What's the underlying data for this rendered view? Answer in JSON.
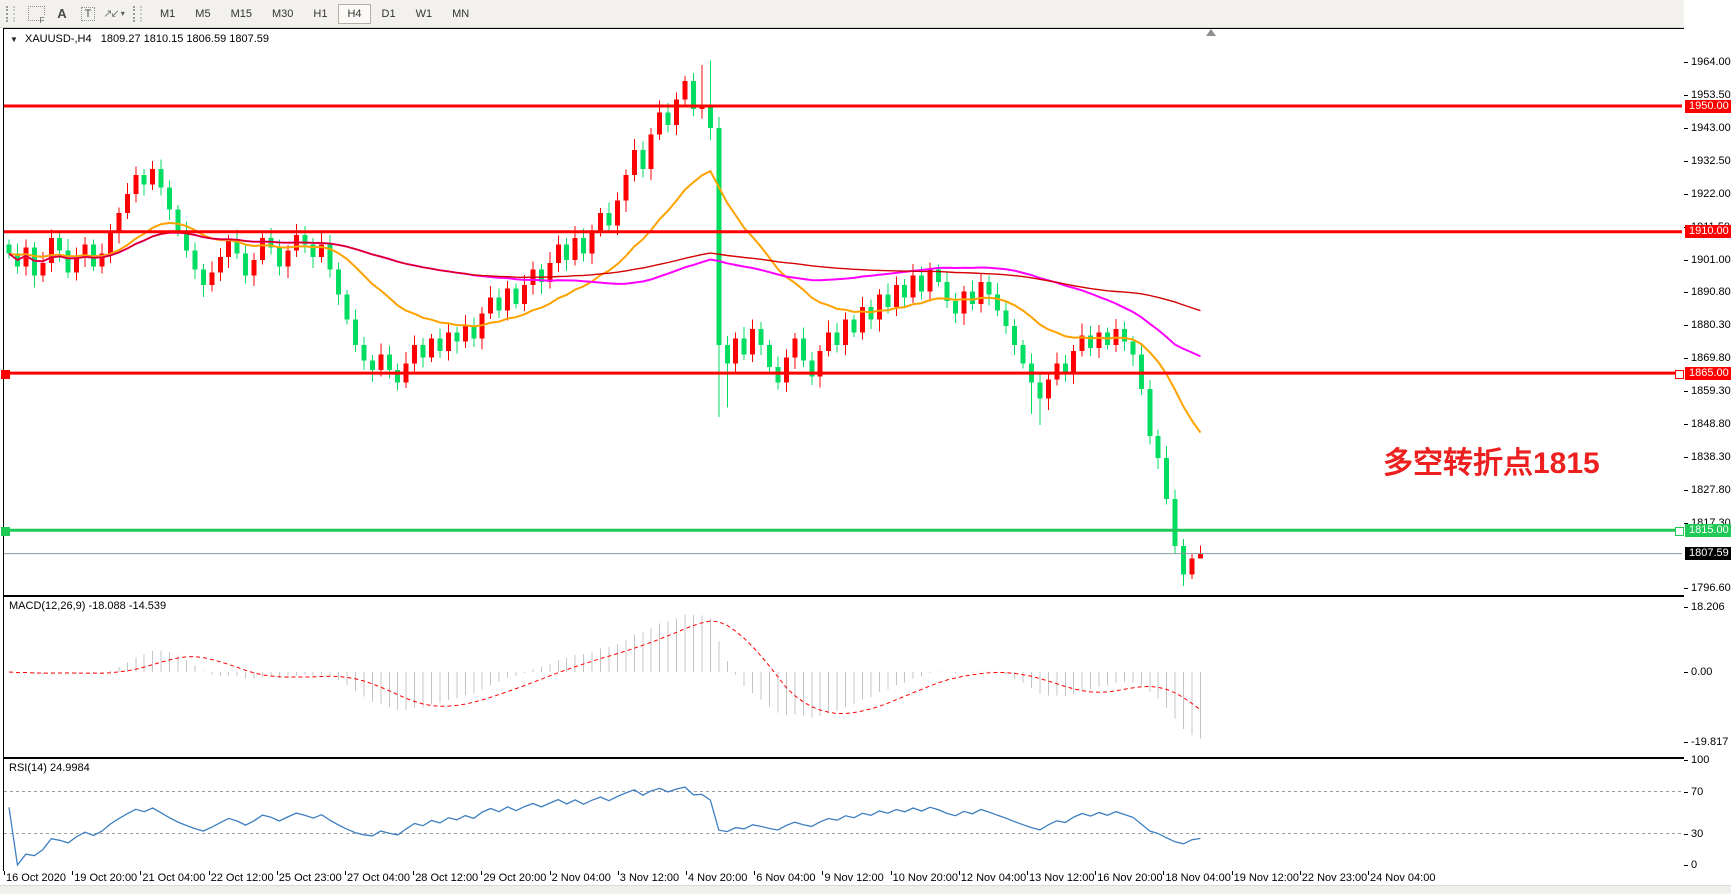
{
  "toolbar": {
    "tools": [
      {
        "icon": "grid-f-icon",
        "label": "F"
      },
      {
        "icon": "text-label-tool-icon",
        "label": "A"
      },
      {
        "icon": "textbox-tool-icon",
        "label": "T"
      },
      {
        "icon": "arrows-tool-icon",
        "label": "↗↙"
      }
    ],
    "dropdown_caret": "▾",
    "timeframes": [
      "M1",
      "M5",
      "M15",
      "M30",
      "H1",
      "H4",
      "D1",
      "W1",
      "MN"
    ],
    "active_timeframe": "H4"
  },
  "title": {
    "dropdown_glyph": "▼",
    "symbol": "XAUUSD-,H4",
    "ohlc": "1809.27 1810.15 1806.59 1807.59"
  },
  "annotation": {
    "text": "多空转折点1815",
    "color": "#ee1f1f"
  },
  "macd_panel": {
    "label": "MACD(12,26,9) -18.088 -14.539"
  },
  "rsi_panel": {
    "label": "RSI(14) 24.9984"
  },
  "chart_data": {
    "type": "candlestick-with-indicators",
    "symbol": "XAUUSD-",
    "timeframe": "H4",
    "current_bar": {
      "open": 1809.27,
      "high": 1810.15,
      "low": 1806.59,
      "close": 1807.59
    },
    "ylim": [
      1794.0,
      1974.5
    ],
    "grid": false,
    "price_axis_ticks": [
      "1964.00",
      "1953.50",
      "1943.00",
      "1932.50",
      "1922.00",
      "1911.50",
      "1901.00",
      "1890.80",
      "1880.30",
      "1869.80",
      "1859.30",
      "1848.80",
      "1838.30",
      "1827.80",
      "1817.30",
      "1796.60"
    ],
    "horizontal_levels": [
      {
        "price": 1950.0,
        "label": "1950.00",
        "color": "#ff0000",
        "width": 3,
        "selected": false
      },
      {
        "price": 1910.0,
        "label": "1910.00",
        "color": "#ff0000",
        "width": 3,
        "selected": false
      },
      {
        "price": 1865.0,
        "label": "1865.00",
        "color": "#ff0000",
        "width": 3,
        "selected": true
      },
      {
        "price": 1815.0,
        "label": "1815.00",
        "color": "#1ec955",
        "width": 3,
        "selected": true
      }
    ],
    "bid_line": {
      "price": 1807.59,
      "label": "1807.59",
      "color": "#8a9aa9",
      "label_bg": "#000000"
    },
    "candles": {
      "bull_color": "#ff0000",
      "bear_color": "#00dd60",
      "first_x": 5,
      "spacing": 8.45,
      "body_width": 5,
      "closes": [
        1903,
        1899,
        1905,
        1896,
        1900,
        1908,
        1904,
        1897,
        1902,
        1906,
        1899,
        1903,
        1910,
        1916,
        1922,
        1928,
        1925,
        1930,
        1924,
        1917,
        1910,
        1904,
        1898,
        1893,
        1897,
        1902,
        1907,
        1903,
        1896,
        1901,
        1908,
        1905,
        1899,
        1904,
        1909,
        1906,
        1902,
        1906,
        1898,
        1890,
        1882,
        1874,
        1869,
        1866,
        1871,
        1866,
        1862,
        1868,
        1874,
        1870,
        1876,
        1872,
        1878,
        1875,
        1880,
        1876,
        1884,
        1889,
        1885,
        1892,
        1887,
        1893,
        1898,
        1894,
        1900,
        1906,
        1901,
        1908,
        1903,
        1910,
        1916,
        1912,
        1920,
        1928,
        1936,
        1930,
        1941,
        1948,
        1944,
        1952,
        1958,
        1949,
        1950,
        1943,
        1874,
        1868,
        1876,
        1871,
        1879,
        1874,
        1867,
        1862,
        1870,
        1876,
        1869,
        1864,
        1872,
        1878,
        1874,
        1882,
        1878,
        1886,
        1882,
        1890,
        1886,
        1893,
        1889,
        1896,
        1891,
        1898,
        1894,
        1888,
        1884,
        1891,
        1887,
        1894,
        1890,
        1885,
        1880,
        1874,
        1868,
        1862,
        1857,
        1863,
        1868,
        1865,
        1872,
        1877,
        1873,
        1878,
        1874,
        1879,
        1875,
        1871,
        1860,
        1845,
        1838,
        1825,
        1810,
        1801,
        1806,
        1807.59
      ],
      "first_open": 1906,
      "wick_overrides": {
        "17": {
          "h": 1932.5
        },
        "46": {
          "l": 1859.5
        },
        "81": {
          "h": 1960.5
        },
        "82": {
          "h": 1963.0
        },
        "83": {
          "h": 1964.5
        },
        "84": {
          "l": 1851.0
        },
        "85": {
          "l": 1854.0
        },
        "121": {
          "l": 1852.0
        },
        "122": {
          "l": 1848.5
        },
        "139": {
          "l": 1797.2
        },
        "141": {
          "h": 1810.15,
          "l": 1806.59
        }
      }
    },
    "moving_averages": [
      {
        "name": "ma-fast",
        "type": "ema",
        "period": 21,
        "color": "#ffa200",
        "width": 2
      },
      {
        "name": "ma-mid",
        "type": "sma",
        "period": 55,
        "color": "#ff00ff",
        "width": 2
      },
      {
        "name": "ma-slow",
        "type": "sma",
        "period": 110,
        "color": "#d40000",
        "width": 1.4
      }
    ],
    "macd": {
      "fast": 12,
      "slow": 26,
      "signal": 9,
      "value": -18.088,
      "signal_value": -14.539,
      "axis_ticks": [
        18.206,
        0.0,
        -19.817
      ],
      "axis_labels": [
        "18.206",
        "0.00",
        "-19.817"
      ],
      "hist_color": "#c4c4c4",
      "signal_color": "#ff0000"
    },
    "rsi": {
      "period": 14,
      "value": 24.9984,
      "axis_ticks": [
        100,
        70,
        30,
        0
      ],
      "levels": [
        70,
        30
      ],
      "line_color": "#3f7fc1",
      "level_color": "#9a9a9a"
    },
    "time_labels": [
      "16 Oct 2020",
      "19 Oct 20:00",
      "21 Oct 04:00",
      "22 Oct 12:00",
      "25 Oct 23:00",
      "27 Oct 04:00",
      "28 Oct 12:00",
      "29 Oct 20:00",
      "2 Nov 04:00",
      "3 Nov 12:00",
      "4 Nov 20:00",
      "6 Nov 04:00",
      "9 Nov 12:00",
      "10 Nov 20:00",
      "12 Nov 04:00",
      "13 Nov 12:00",
      "16 Nov 20:00",
      "18 Nov 04:00",
      "19 Nov 12:00",
      "22 Nov 23:00",
      "24 Nov 04:00"
    ],
    "time_first_tick_x": 4,
    "time_tick_spacing": 68.2
  }
}
